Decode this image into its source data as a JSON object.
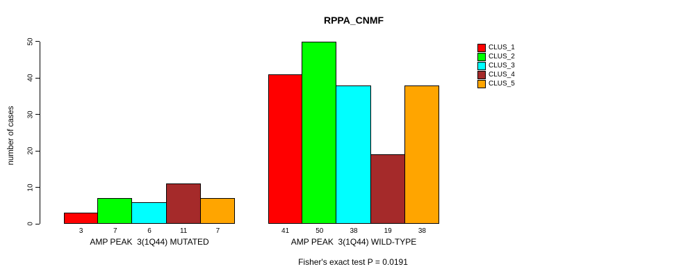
{
  "chart_data": {
    "type": "bar",
    "title": "RPPA_CNMF",
    "ylabel": "number of cases",
    "xlabel": "",
    "ylim": [
      0,
      50
    ],
    "yticks": [
      0,
      10,
      20,
      30,
      40,
      50
    ],
    "grid": false,
    "legend_position": "right-inside",
    "bar_value_labels": true,
    "categories": [
      "AMP PEAK  3(1Q44) MUTATED",
      "AMP PEAK  3(1Q44) WILD-TYPE"
    ],
    "groups": [
      {
        "label": "AMP PEAK  3(1Q44) MUTATED",
        "values": [
          3,
          7,
          6,
          11,
          7
        ]
      },
      {
        "label": "AMP PEAK  3(1Q44) WILD-TYPE",
        "values": [
          41,
          50,
          38,
          19,
          38
        ]
      }
    ],
    "series": [
      {
        "name": "CLUS_1",
        "color": "#FF0000"
      },
      {
        "name": "CLUS_2",
        "color": "#00FF00"
      },
      {
        "name": "CLUS_3",
        "color": "#00FFFF"
      },
      {
        "name": "CLUS_4",
        "color": "#A52A2A"
      },
      {
        "name": "CLUS_5",
        "color": "#FFA500"
      }
    ],
    "footer": "Fisher's exact test P = 0.0191",
    "axis_color": "#000000",
    "background_color": "#FFFFFF"
  }
}
